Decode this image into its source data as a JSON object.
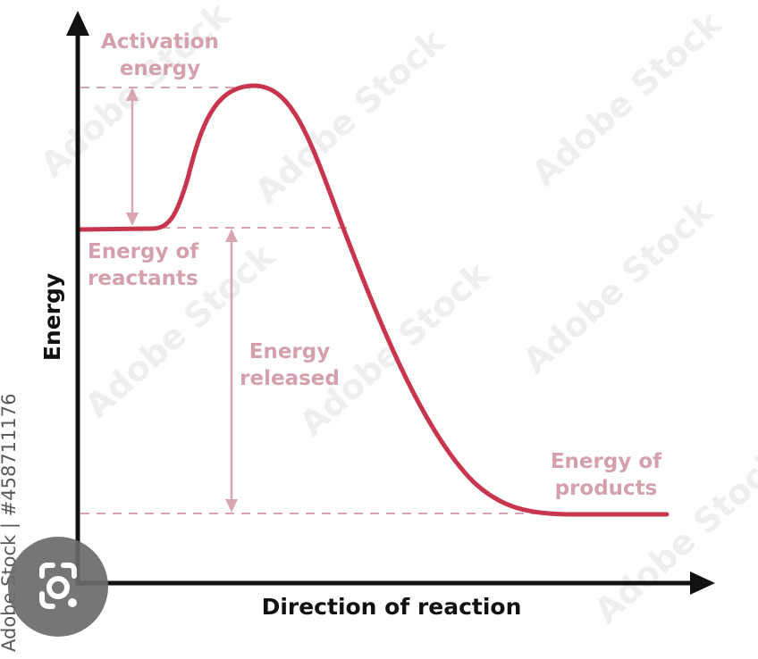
{
  "diagram": {
    "axes": {
      "y_label": "Energy",
      "x_label": "Direction of reaction"
    },
    "annotations": {
      "activation_energy_line1": "Activation",
      "activation_energy_line2": "energy",
      "reactants_line1": "Energy of",
      "reactants_line2": "reactants",
      "released_line1": "Energy",
      "released_line2": "released",
      "products_line1": "Energy of",
      "products_line2": "products"
    },
    "watermark_text": "Adobe Stock",
    "side_credit": "Adobe Stock | #458711176",
    "colors": {
      "curve": "#c8354f",
      "annotation": "#d4a0ad",
      "axis": "#111111",
      "watermark": "#eeeeee",
      "badge": "#6b6b6b"
    },
    "icons": {
      "badge": "lens-search-icon"
    }
  }
}
